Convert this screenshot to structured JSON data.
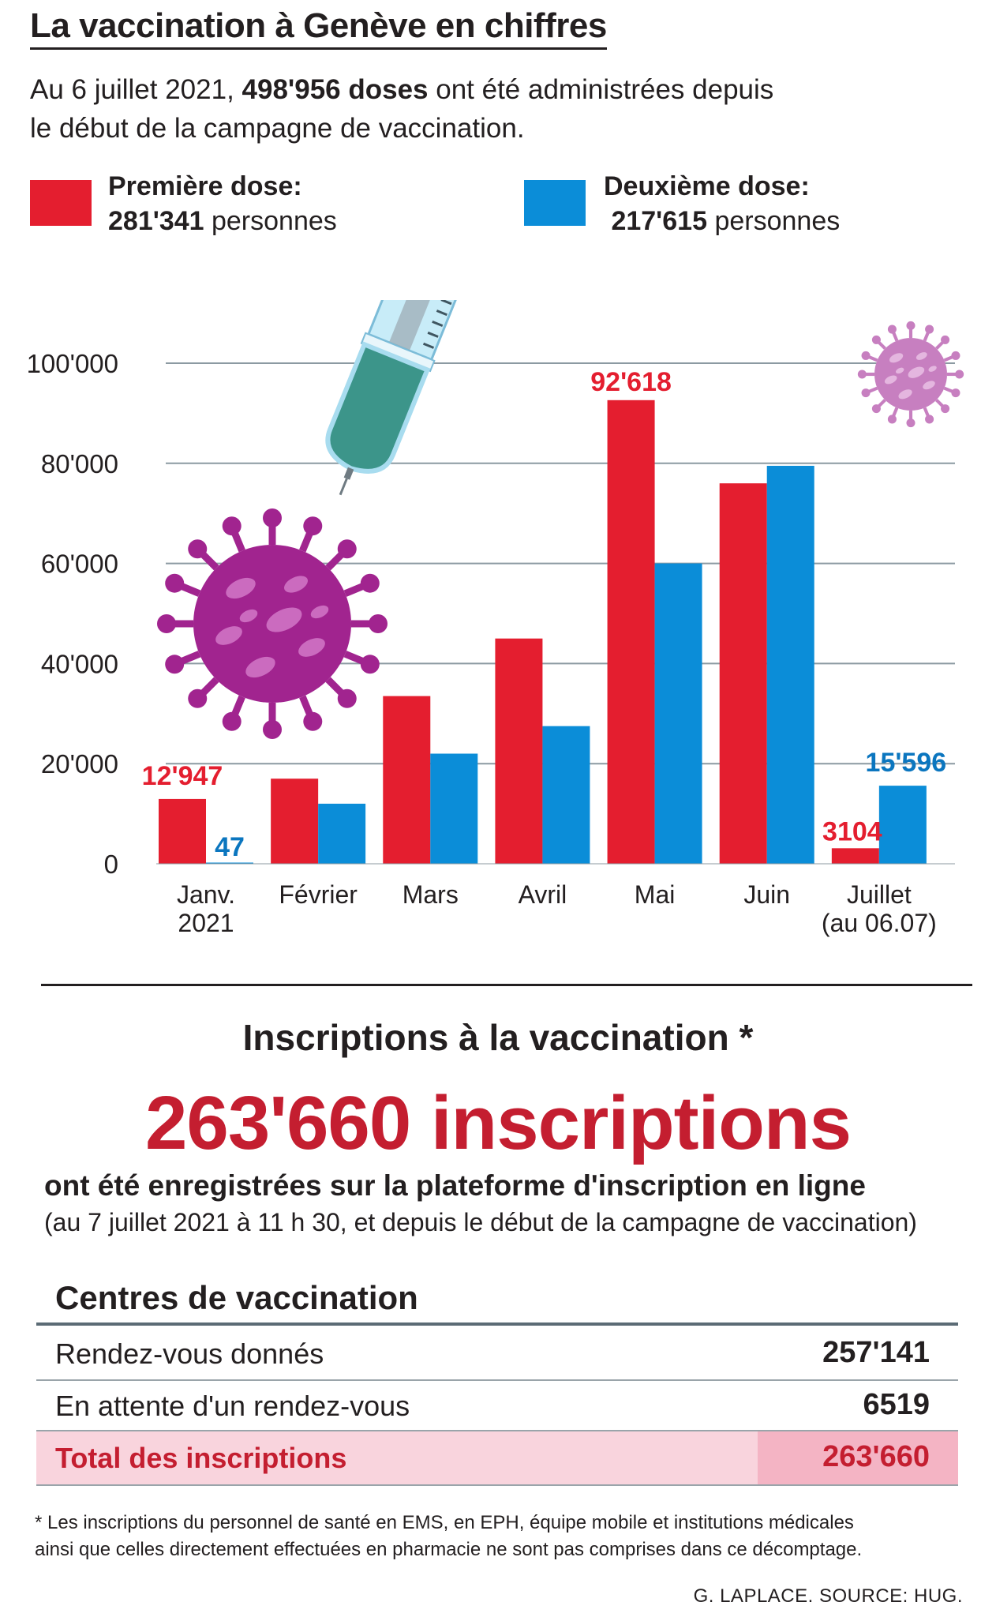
{
  "header": {
    "title": "La vaccination à Genève en chiffres",
    "intro_line1_pre": "Au 6 juillet 2021, ",
    "intro_line1_bold": "498'956 doses",
    "intro_line1_post": " ont été administrées depuis",
    "intro_line2": "le début de la campagne de vaccination."
  },
  "legend": {
    "first": {
      "label": "Première dose:",
      "count": "281'341",
      "unit": " personnes",
      "color": "#e41e2f"
    },
    "second": {
      "label": "Deuxième dose:",
      "count": "217'615",
      "unit": " personnes",
      "color": "#0b8dd8"
    }
  },
  "chart_data": {
    "type": "bar",
    "categories": [
      "Janv.\n2021",
      "Février",
      "Mars",
      "Avril",
      "Mai",
      "Juin",
      "Juillet\n(au 06.07)"
    ],
    "series": [
      {
        "name": "Première dose",
        "color": "#e41e2f",
        "values": [
          12947,
          17000,
          33500,
          45000,
          92618,
          76000,
          3104
        ]
      },
      {
        "name": "Deuxième dose",
        "color": "#0b8dd8",
        "values": [
          47,
          12000,
          22000,
          27500,
          60000,
          79500,
          15596
        ]
      }
    ],
    "data_labels": [
      {
        "series": 0,
        "index": 0,
        "text": "12'947"
      },
      {
        "series": 1,
        "index": 0,
        "text": "47"
      },
      {
        "series": 0,
        "index": 4,
        "text": "92'618"
      },
      {
        "series": 0,
        "index": 6,
        "text": "3104"
      },
      {
        "series": 1,
        "index": 6,
        "text": "15'596"
      }
    ],
    "yticks": [
      "0",
      "20'000",
      "40'000",
      "60'000",
      "80'000",
      "100'000"
    ],
    "ylim": [
      0,
      100000
    ],
    "grid": true,
    "title": "",
    "xlabel": "",
    "ylabel": ""
  },
  "inscriptions": {
    "title": "Inscriptions à la vaccination *",
    "big": "263'660 inscriptions",
    "sub": "ont été enregistrées sur la plateforme d'inscription en ligne",
    "note": "(au 7 juillet 2021 à 11 h 30, et depuis le début de la campagne de vaccination)"
  },
  "centres": {
    "title": "Centres de vaccination",
    "rows": [
      {
        "label": "Rendez-vous donnés",
        "value": "257'141"
      },
      {
        "label": "En attente d'un rendez-vous",
        "value": "6519"
      },
      {
        "label": "Total des inscriptions",
        "value": "263'660"
      }
    ]
  },
  "footnote": "* Les inscriptions du personnel de santé en EMS, en EPH, équipe mobile et institutions médicales ainsi que celles directement effectuées en pharmacie ne sont pas comprises dans ce décomptage.",
  "credit": "G. LAPLACE. SOURCE: HUG.",
  "icons": [
    "syringe-icon",
    "virus-icon",
    "small-virus-icon"
  ]
}
